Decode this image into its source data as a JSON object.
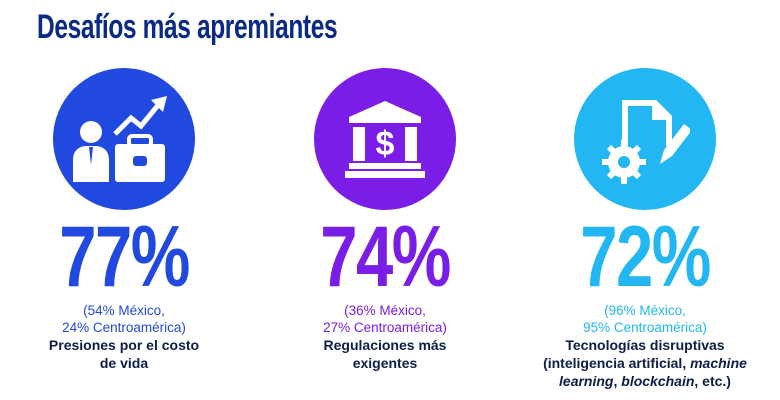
{
  "title": "Desafíos más apremiantes",
  "colors": {
    "title": "#0b2a86",
    "blue": "#2149e0",
    "purple": "#7a1de6",
    "cyan": "#22b7f2",
    "label": "#0d1d4a"
  },
  "items": [
    {
      "icon": "businessman-growth-icon",
      "percent": "77%",
      "mexico": "(54% México,",
      "centroamerica": "24% Centroamérica)",
      "label": "Presiones por el costo de vida"
    },
    {
      "icon": "bank-dollar-icon",
      "percent": "74%",
      "mexico": "(36% México,",
      "centroamerica": "27% Centroamérica)",
      "label": "Regulaciones más exigentes"
    },
    {
      "icon": "document-gear-pencil-icon",
      "percent": "72%",
      "mexico": "(96% México,",
      "centroamerica": "95% Centroamérica)",
      "label_parts": [
        "Tecnologías disruptivas (inteligencia artificial, ",
        "machine learning",
        ", ",
        "blockchain",
        ", etc.)"
      ]
    }
  ]
}
